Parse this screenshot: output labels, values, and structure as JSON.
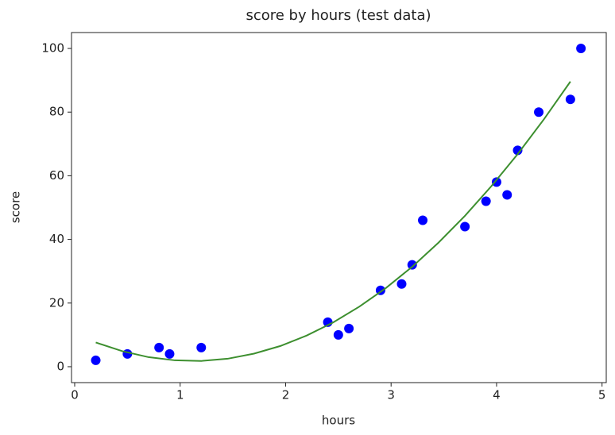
{
  "chart_data": {
    "type": "scatter",
    "title": "score by hours (test data)",
    "x_label": "hours",
    "y_label": "score",
    "xlim": [
      -0.03,
      5.04
    ],
    "ylim": [
      -5,
      105
    ],
    "xticks": [
      0,
      1,
      2,
      3,
      4,
      5
    ],
    "yticks": [
      0,
      20,
      40,
      60,
      80,
      100
    ],
    "grid": false,
    "series": [
      {
        "type": "scatter",
        "color": "#0000ff",
        "x": [
          0.2,
          0.5,
          0.8,
          0.9,
          1.2,
          2.4,
          2.5,
          2.6,
          2.9,
          3.1,
          3.2,
          3.3,
          3.7,
          3.9,
          4.0,
          4.1,
          4.2,
          4.4,
          4.7,
          4.8
        ],
        "values": [
          2,
          4,
          6,
          4,
          6,
          14,
          10,
          12,
          24,
          26,
          32,
          46,
          44,
          52,
          58,
          54,
          68,
          80,
          84,
          100
        ]
      },
      {
        "type": "line",
        "color": "#3d8f2f",
        "x": [
          0.2,
          0.45,
          0.7,
          0.95,
          1.2,
          1.45,
          1.7,
          1.95,
          2.2,
          2.45,
          2.7,
          2.95,
          3.2,
          3.45,
          3.7,
          3.95,
          4.2,
          4.45,
          4.7
        ],
        "values": [
          7.6,
          4.9,
          3.0,
          2.0,
          1.8,
          2.5,
          4.1,
          6.5,
          9.8,
          13.9,
          18.9,
          24.7,
          31.4,
          39.0,
          47.4,
          56.7,
          66.8,
          77.8,
          89.6
        ]
      }
    ]
  }
}
